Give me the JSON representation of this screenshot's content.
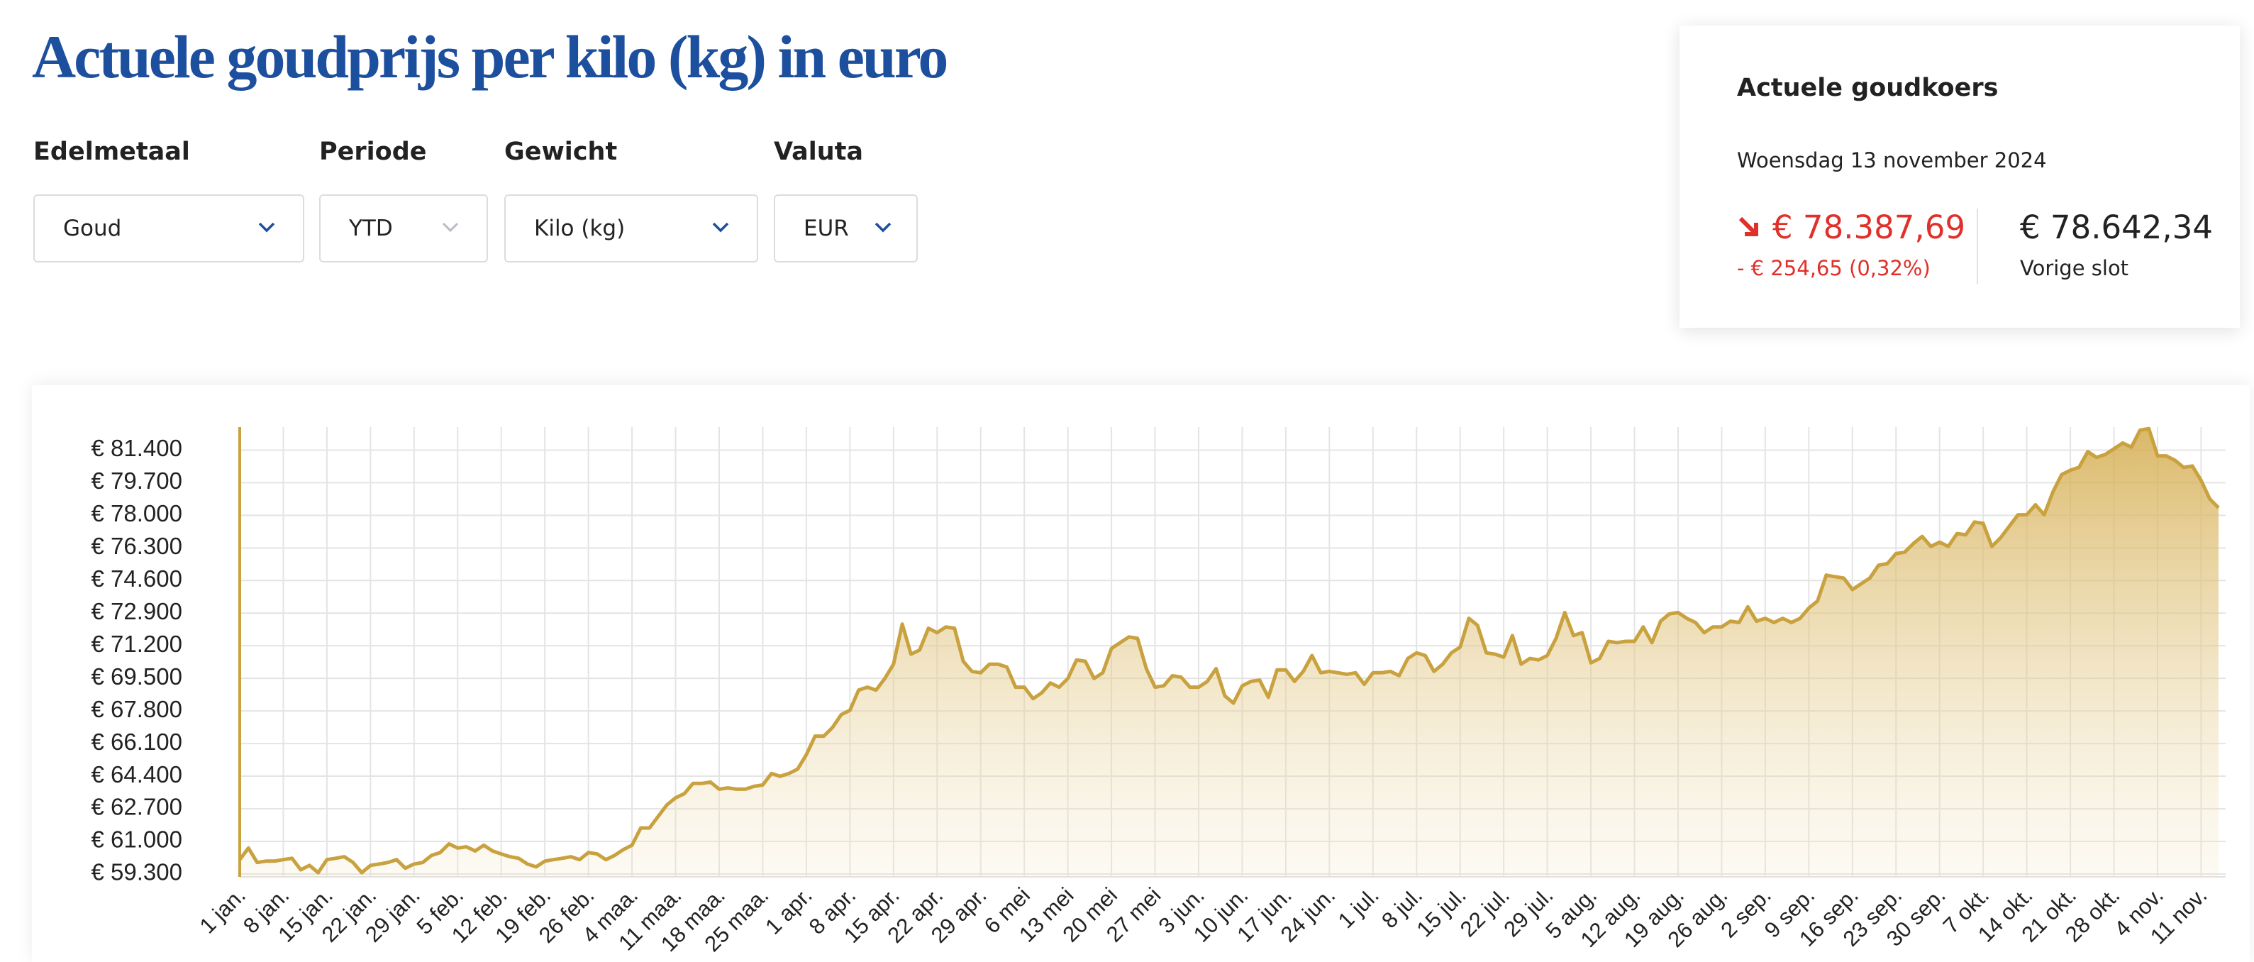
{
  "header": {
    "title": "Actuele goudprijs per kilo (kg) in euro"
  },
  "filters": [
    {
      "label": "Edelmetaal",
      "value": "Goud"
    },
    {
      "label": "Periode",
      "value": "YTD"
    },
    {
      "label": "Gewicht",
      "value": "Kilo (kg)"
    },
    {
      "label": "Valuta",
      "value": "EUR"
    }
  ],
  "quote": {
    "title": "Actuele goudkoers",
    "date": "Woensdag 13 november 2024",
    "price": "€ 78.387,69",
    "change": "- € 254,65 (0,32%)",
    "previous_close": "€ 78.642,34",
    "previous_close_label": "Vorige slot"
  },
  "chart_data": {
    "type": "line",
    "color": "#c9a23f",
    "grid": true,
    "ylim": [
      59150,
      82600
    ],
    "yticks": [
      {
        "value": 59300,
        "label": "€ 59.300"
      },
      {
        "value": 61000,
        "label": "€ 61.000"
      },
      {
        "value": 62700,
        "label": "€ 62.700"
      },
      {
        "value": 64400,
        "label": "€ 64.400"
      },
      {
        "value": 66100,
        "label": "€ 66.100"
      },
      {
        "value": 67800,
        "label": "€ 67.800"
      },
      {
        "value": 69500,
        "label": "€ 69.500"
      },
      {
        "value": 71200,
        "label": "€ 71.200"
      },
      {
        "value": 72900,
        "label": "€ 72.900"
      },
      {
        "value": 74600,
        "label": "€ 74.600"
      },
      {
        "value": 76300,
        "label": "€ 76.300"
      },
      {
        "value": 78000,
        "label": "€ 78.000"
      },
      {
        "value": 79700,
        "label": "€ 79.700"
      },
      {
        "value": 81400,
        "label": "€ 81.400"
      }
    ],
    "categories": [
      "1 jan.",
      null,
      null,
      null,
      null,
      "8 jan.",
      null,
      null,
      null,
      null,
      "15 jan.",
      null,
      null,
      null,
      null,
      "22 jan.",
      null,
      null,
      null,
      null,
      "29 jan.",
      null,
      null,
      null,
      null,
      "5 feb.",
      null,
      null,
      null,
      null,
      "12 feb.",
      null,
      null,
      null,
      null,
      "19 feb.",
      null,
      null,
      null,
      null,
      "26 feb.",
      null,
      null,
      null,
      null,
      "4 maa.",
      null,
      null,
      null,
      null,
      "11 maa.",
      null,
      null,
      null,
      null,
      "18 maa.",
      null,
      null,
      null,
      null,
      "25 maa.",
      null,
      null,
      null,
      null,
      "1 apr.",
      null,
      null,
      null,
      null,
      "8 apr.",
      null,
      null,
      null,
      null,
      "15 apr.",
      null,
      null,
      null,
      null,
      "22 apr.",
      null,
      null,
      null,
      null,
      "29 apr.",
      null,
      null,
      null,
      null,
      "6 mei",
      null,
      null,
      null,
      null,
      "13 mei",
      null,
      null,
      null,
      null,
      "20 mei",
      null,
      null,
      null,
      null,
      "27 mei",
      null,
      null,
      null,
      null,
      "3 jun.",
      null,
      null,
      null,
      null,
      "10 jun.",
      null,
      null,
      null,
      null,
      "17 jun.",
      null,
      null,
      null,
      null,
      "24 jun.",
      null,
      null,
      null,
      null,
      "1 jul.",
      null,
      null,
      null,
      null,
      "8 jul.",
      null,
      null,
      null,
      null,
      "15 jul.",
      null,
      null,
      null,
      null,
      "22 jul.",
      null,
      null,
      null,
      null,
      "29 jul.",
      null,
      null,
      null,
      null,
      "5 aug.",
      null,
      null,
      null,
      null,
      "12 aug.",
      null,
      null,
      null,
      null,
      "19 aug.",
      null,
      null,
      null,
      null,
      "26 aug.",
      null,
      null,
      null,
      null,
      "2 sep.",
      null,
      null,
      null,
      null,
      "9 sep.",
      null,
      null,
      null,
      null,
      "16 sep.",
      null,
      null,
      null,
      null,
      "23 sep.",
      null,
      null,
      null,
      null,
      "30 sep.",
      null,
      null,
      null,
      null,
      "7 okt.",
      null,
      null,
      null,
      null,
      "14 okt.",
      null,
      null,
      null,
      null,
      "21 okt.",
      null,
      null,
      null,
      null,
      "28 okt.",
      null,
      null,
      null,
      null,
      "4 nov.",
      null,
      null,
      null,
      null,
      "11 nov.",
      null,
      null
    ],
    "values": [
      60050,
      60650,
      59900,
      59970,
      59970,
      60050,
      60120,
      59520,
      59750,
      59370,
      60050,
      60120,
      60200,
      59900,
      59370,
      59750,
      59820,
      59900,
      60050,
      59600,
      59820,
      59900,
      60270,
      60420,
      60870,
      60650,
      60720,
      60500,
      60800,
      60500,
      60350,
      60200,
      60120,
      59820,
      59670,
      59970,
      60050,
      60120,
      60200,
      60050,
      60420,
      60350,
      60050,
      60270,
      60570,
      60800,
      61700,
      61700,
      62300,
      62900,
      63270,
      63490,
      64020,
      64020,
      64090,
      63720,
      63790,
      63720,
      63720,
      63870,
      63940,
      64540,
      64390,
      64540,
      64770,
      65520,
      66490,
      66490,
      66940,
      67610,
      67840,
      68890,
      69040,
      68890,
      69490,
      70240,
      72330,
      70760,
      70980,
      72110,
      71880,
      72180,
      72110,
      70390,
      69860,
      69790,
      70240,
      70240,
      70090,
      69040,
      69040,
      68440,
      68740,
      69260,
      69040,
      69490,
      70460,
      70390,
      69490,
      69790,
      71060,
      71360,
      71660,
      71580,
      70010,
      69040,
      69110,
      69640,
      69560,
      69040,
      69040,
      69340,
      70010,
      68590,
      68210,
      69110,
      69340,
      69410,
      68510,
      69940,
      69940,
      69340,
      69860,
      70690,
      69790,
      69860,
      69790,
      69710,
      69790,
      69190,
      69790,
      69790,
      69860,
      69640,
      70540,
      70830,
      70690,
      69860,
      70240,
      70830,
      71130,
      72630,
      72260,
      70830,
      70760,
      70610,
      71730,
      70240,
      70540,
      70460,
      70690,
      71580,
      72930,
      71730,
      71880,
      70310,
      70540,
      71430,
      71360,
      71430,
      71430,
      72180,
      71360,
      72480,
      72860,
      72930,
      72630,
      72410,
      71880,
      72180,
      72180,
      72480,
      72410,
      73230,
      72480,
      72630,
      72410,
      72630,
      72410,
      72630,
      73160,
      73530,
      74880,
      74800,
      74730,
      74130,
      74430,
      74730,
      75400,
      75480,
      76000,
      76080,
      76530,
      76900,
      76380,
      76600,
      76380,
      77050,
      76980,
      77650,
      77580,
      76380,
      76830,
      77430,
      78030,
      78030,
      78550,
      78030,
      79220,
      80120,
      80350,
      80500,
      81320,
      81020,
      81170,
      81470,
      81770,
      81550,
      82440,
      82520,
      81100,
      81100,
      80870,
      80500,
      80570,
      79820,
      78850,
      78390
    ]
  }
}
